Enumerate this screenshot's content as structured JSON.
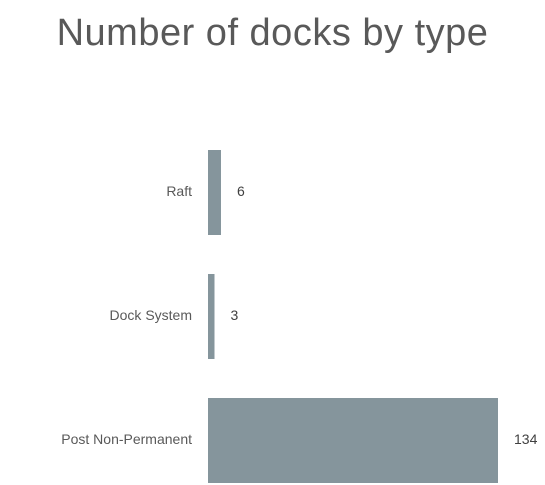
{
  "chart_data": {
    "type": "bar",
    "orientation": "horizontal",
    "title": "Number of docks by type",
    "categories": [
      "Raft",
      "Dock System",
      "Post Non-Permanent"
    ],
    "values": [
      6,
      3,
      134
    ],
    "xlabel": "",
    "ylabel": "",
    "bar_color": "#85959c",
    "grid": false,
    "legend": "none",
    "data_labels": true
  }
}
